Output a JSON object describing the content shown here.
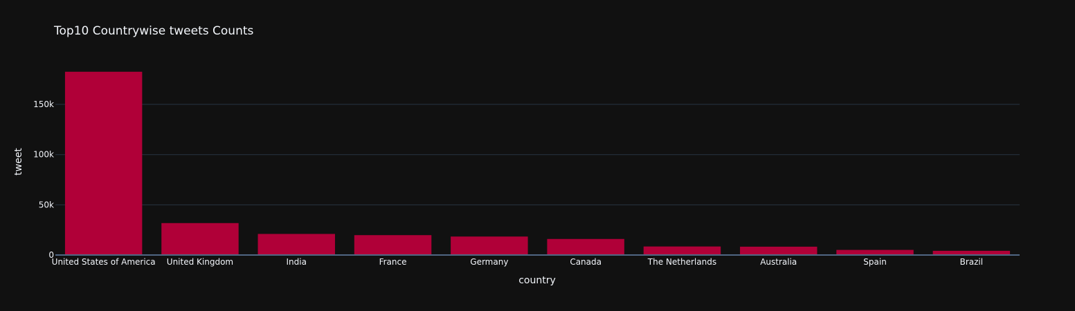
{
  "chart_data": {
    "type": "bar",
    "title": "Top10 Countrywise tweets Counts",
    "xlabel": "country",
    "ylabel": "tweet",
    "categories": [
      "United States of America",
      "United Kingdom",
      "India",
      "France",
      "Germany",
      "Canada",
      "The Netherlands",
      "Australia",
      "Spain",
      "Brazil"
    ],
    "values": [
      182500,
      31800,
      21000,
      19800,
      18400,
      16000,
      8500,
      8300,
      5100,
      4200
    ],
    "ylim": [
      0,
      192000
    ],
    "yticks": [
      0,
      50000,
      100000,
      150000
    ],
    "ytick_labels": [
      "0",
      "50k",
      "100k",
      "150k"
    ],
    "grid": true,
    "colors": {
      "bar": "#b00038",
      "background": "#111111",
      "grid": "#283442",
      "text": "#f2f5fa",
      "zeroline": "#506784"
    }
  }
}
